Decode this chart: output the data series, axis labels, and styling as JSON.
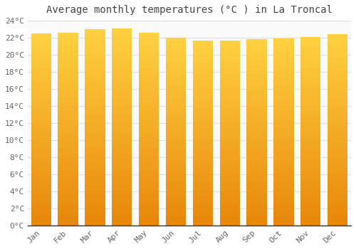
{
  "title": "Average monthly temperatures (°C ) in La Troncal",
  "months": [
    "Jan",
    "Feb",
    "Mar",
    "Apr",
    "May",
    "Jun",
    "Jul",
    "Aug",
    "Sep",
    "Oct",
    "Nov",
    "Dec"
  ],
  "values": [
    22.5,
    22.6,
    23.0,
    23.1,
    22.6,
    22.0,
    21.7,
    21.7,
    21.8,
    21.9,
    22.1,
    22.4
  ],
  "ylim": [
    0,
    24
  ],
  "yticks": [
    0,
    2,
    4,
    6,
    8,
    10,
    12,
    14,
    16,
    18,
    20,
    22,
    24
  ],
  "ytick_labels": [
    "0°C",
    "2°C",
    "4°C",
    "6°C",
    "8°C",
    "10°C",
    "12°C",
    "14°C",
    "16°C",
    "18°C",
    "20°C",
    "22°C",
    "24°C"
  ],
  "bar_color_left": "#E8870A",
  "bar_color_center": "#FFBB20",
  "bar_color_right": "#F09010",
  "background_color": "#FFFFFF",
  "plot_bg_color": "#FAFAFA",
  "grid_color": "#E0E0E0",
  "spine_color": "#AAAAAA",
  "title_fontsize": 10,
  "tick_fontsize": 8,
  "bar_width": 0.75
}
